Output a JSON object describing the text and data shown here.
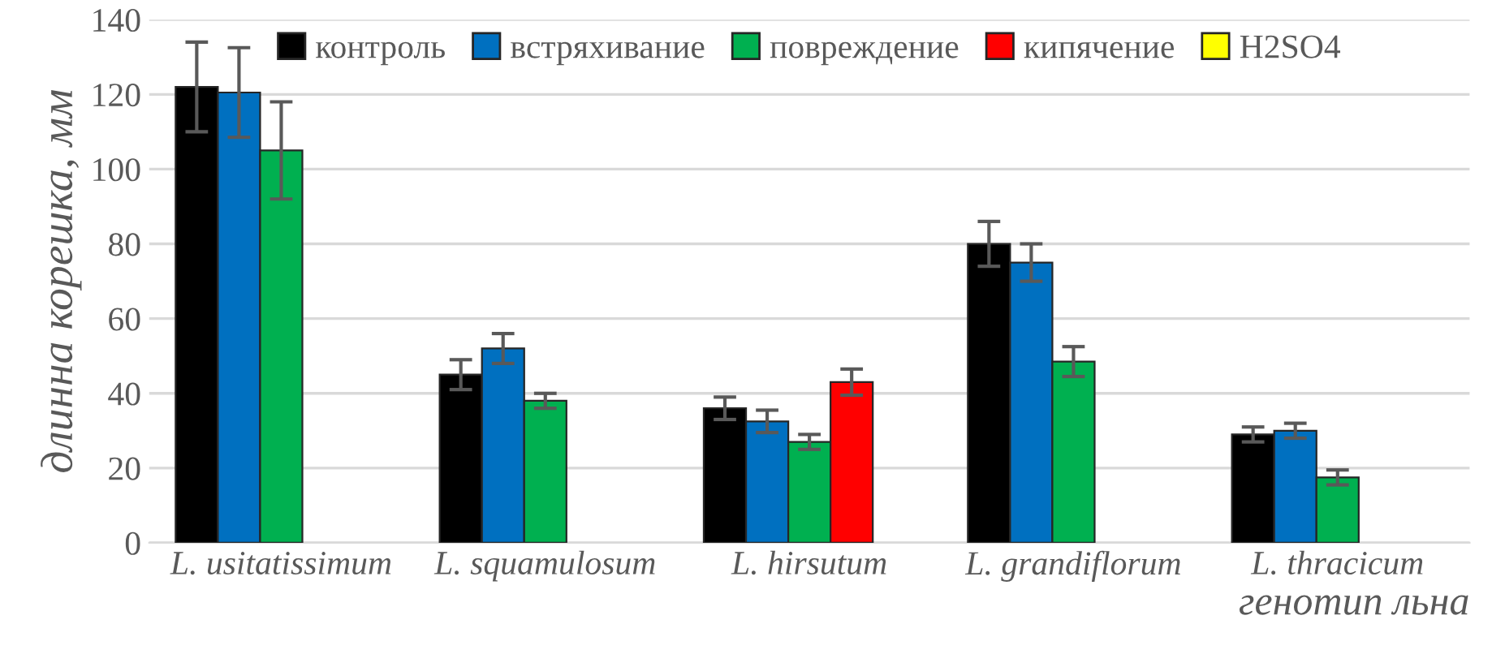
{
  "chart_data": {
    "type": "bar",
    "ylabel": "длинна корешка, мм",
    "xlabel": "генотип льна",
    "categories": [
      "L. usitatissimum",
      "L. squamulosum",
      "L. hirsutum",
      "L. grandiflorum",
      "L. thracicum"
    ],
    "series": [
      {
        "name": "контроль",
        "color": "#000000",
        "values": [
          122,
          45,
          36,
          80,
          29
        ],
        "errors": [
          12,
          4,
          3,
          6,
          2
        ]
      },
      {
        "name": "встряхивание",
        "color": "#0070c0",
        "values": [
          120.5,
          52,
          32.5,
          75,
          30
        ],
        "errors": [
          12,
          4,
          3,
          5,
          2
        ]
      },
      {
        "name": "повреждение",
        "color": "#00b050",
        "values": [
          105,
          38,
          27,
          48.5,
          17.5
        ],
        "errors": [
          13,
          2,
          2,
          4,
          2
        ]
      },
      {
        "name": "кипячение",
        "color": "#ff0000",
        "values": [
          null,
          null,
          43,
          null,
          null
        ],
        "errors": [
          null,
          null,
          3.5,
          null,
          null
        ]
      },
      {
        "name": "H2SO4",
        "color": "#ffff00",
        "values": [
          null,
          null,
          null,
          null,
          null
        ]
      }
    ],
    "ylim": [
      0,
      140
    ],
    "yticks": [
      0,
      20,
      40,
      60,
      80,
      100,
      120,
      140
    ],
    "grid": "y",
    "legend": "top"
  }
}
